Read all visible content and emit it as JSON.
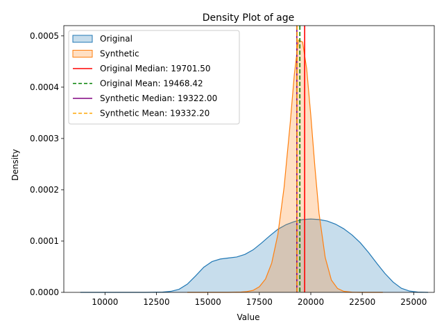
{
  "chart_data": {
    "type": "area",
    "title": "Density Plot of age",
    "xlabel": "Value",
    "ylabel": "Density",
    "xlim": [
      8000,
      26000
    ],
    "ylim": [
      0,
      0.00052
    ],
    "xticks": [
      10000,
      12500,
      15000,
      17500,
      20000,
      22500,
      25000
    ],
    "xtick_labels": [
      "10000",
      "12500",
      "15000",
      "17500",
      "20000",
      "22500",
      "25000"
    ],
    "yticks": [
      0,
      0.0001,
      0.0002,
      0.0003,
      0.0004,
      0.0005
    ],
    "ytick_labels": [
      "0.0000",
      "0.0001",
      "0.0002",
      "0.0003",
      "0.0004",
      "0.0005"
    ],
    "grid": false,
    "legend_position": "top-left",
    "series": [
      {
        "name": "Original",
        "color": "#1f77b4",
        "fill_opacity": 0.25,
        "x": [
          8800,
          10000,
          11000,
          12000,
          12800,
          13200,
          13600,
          14000,
          14400,
          14800,
          15200,
          15600,
          16000,
          16400,
          16800,
          17200,
          17600,
          18000,
          18400,
          18800,
          19200,
          19600,
          20000,
          20400,
          20800,
          21200,
          21600,
          22000,
          22400,
          22800,
          23200,
          23600,
          24000,
          24400,
          24800,
          25200,
          25700
        ],
        "values": [
          0,
          0,
          0,
          0,
          5e-07,
          2e-06,
          6e-06,
          1.6e-05,
          3.2e-05,
          4.9e-05,
          6e-05,
          6.5e-05,
          6.7e-05,
          6.9e-05,
          7.4e-05,
          8.3e-05,
          9.6e-05,
          0.00011,
          0.000123,
          0.000132,
          0.000138,
          0.000142,
          0.000143,
          0.000142,
          0.000139,
          0.000133,
          0.000124,
          0.000112,
          9.7e-05,
          7.8e-05,
          5.7e-05,
          3.7e-05,
          2e-05,
          8e-06,
          2.5e-06,
          5e-07,
          0
        ]
      },
      {
        "name": "Synthetic",
        "color": "#ff7f0e",
        "fill_opacity": 0.25,
        "x": [
          14000,
          16000,
          16600,
          16900,
          17200,
          17500,
          17800,
          18100,
          18400,
          18700,
          19000,
          19200,
          19400,
          19600,
          19800,
          20000,
          20200,
          20400,
          20700,
          21000,
          21300,
          21600,
          22000,
          22400,
          23500
        ],
        "values": [
          0,
          0,
          5e-07,
          1.5e-06,
          4e-06,
          1.1e-05,
          2.6e-05,
          5.7e-05,
          0.000113,
          0.000204,
          0.00033,
          0.000425,
          0.000492,
          0.000488,
          0.000436,
          0.000345,
          0.000244,
          0.000154,
          6.8e-05,
          2.4e-05,
          7.5e-06,
          2e-06,
          3e-07,
          0,
          0
        ]
      }
    ],
    "reference_lines": [
      {
        "label": "Original Median: 19701.50",
        "x": 19701.5,
        "color": "#ff0000",
        "style": "solid"
      },
      {
        "label": "Original Mean: 19468.42",
        "x": 19468.42,
        "color": "#008000",
        "style": "dashed"
      },
      {
        "label": "Synthetic Median: 19322.00",
        "x": 19322.0,
        "color": "#800080",
        "style": "solid"
      },
      {
        "label": "Synthetic Mean: 19332.20",
        "x": 19332.2,
        "color": "#ffa500",
        "style": "dashed"
      }
    ]
  }
}
